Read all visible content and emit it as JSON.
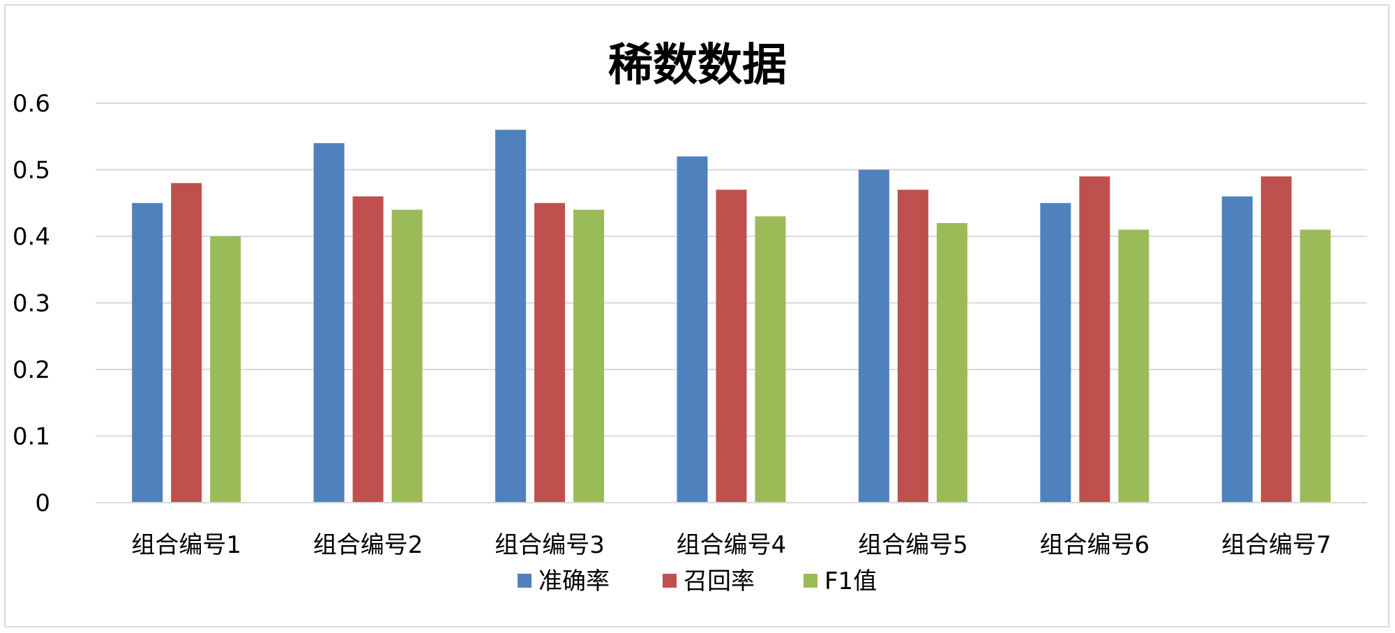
{
  "chart_data": {
    "type": "bar",
    "title": "稀数数据",
    "xlabel": "",
    "ylabel": "",
    "ylim": [
      0,
      0.6
    ],
    "yticks": [
      "0",
      "0.1",
      "0.2",
      "0.3",
      "0.4",
      "0.5",
      "0.6"
    ],
    "grid": true,
    "legend_position": "bottom",
    "categories": [
      "组合编号1",
      "组合编号2",
      "组合编号3",
      "组合编号4",
      "组合编号5",
      "组合编号6",
      "组合编号7"
    ],
    "series": [
      {
        "name": "准确率",
        "color": "#4f81bd",
        "values": [
          0.45,
          0.54,
          0.56,
          0.52,
          0.5,
          0.45,
          0.46
        ]
      },
      {
        "name": "召回率",
        "color": "#c0504d",
        "values": [
          0.48,
          0.46,
          0.45,
          0.47,
          0.47,
          0.49,
          0.49
        ]
      },
      {
        "name": "F1值",
        "color": "#9bbb59",
        "values": [
          0.4,
          0.44,
          0.44,
          0.43,
          0.42,
          0.41,
          0.41
        ]
      }
    ]
  }
}
